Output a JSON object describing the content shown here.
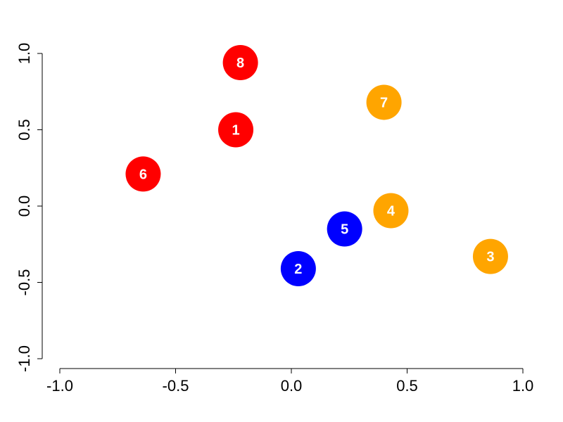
{
  "chart_data": {
    "type": "scatter",
    "title": "",
    "xlabel": "",
    "ylabel": "",
    "xlim": [
      -1.0,
      1.0
    ],
    "ylim": [
      -1.0,
      1.0
    ],
    "x_ticks": [
      -1.0,
      -0.5,
      0.0,
      0.5,
      1.0
    ],
    "x_tick_labels": [
      "-1.0",
      "-0.5",
      "0.0",
      "0.5",
      "1.0"
    ],
    "y_ticks": [
      -1.0,
      -0.5,
      0.0,
      0.5,
      1.0
    ],
    "y_tick_labels": [
      "-1.0",
      "-0.5",
      "0.0",
      "0.5",
      "1.0"
    ],
    "grid": false,
    "legend": "none",
    "groups": [
      {
        "color": "#ff0000"
      },
      {
        "color": "#0000ff"
      },
      {
        "color": "#ffa500"
      }
    ],
    "points": [
      {
        "label": "1",
        "x": -0.24,
        "y": 0.5,
        "group": 0
      },
      {
        "label": "2",
        "x": 0.03,
        "y": -0.41,
        "group": 1
      },
      {
        "label": "3",
        "x": 0.86,
        "y": -0.33,
        "group": 2
      },
      {
        "label": "4",
        "x": 0.43,
        "y": -0.03,
        "group": 2
      },
      {
        "label": "5",
        "x": 0.23,
        "y": -0.15,
        "group": 1
      },
      {
        "label": "6",
        "x": -0.64,
        "y": 0.21,
        "group": 0
      },
      {
        "label": "7",
        "x": 0.4,
        "y": 0.68,
        "group": 2
      },
      {
        "label": "8",
        "x": -0.22,
        "y": 0.94,
        "group": 0
      }
    ]
  }
}
